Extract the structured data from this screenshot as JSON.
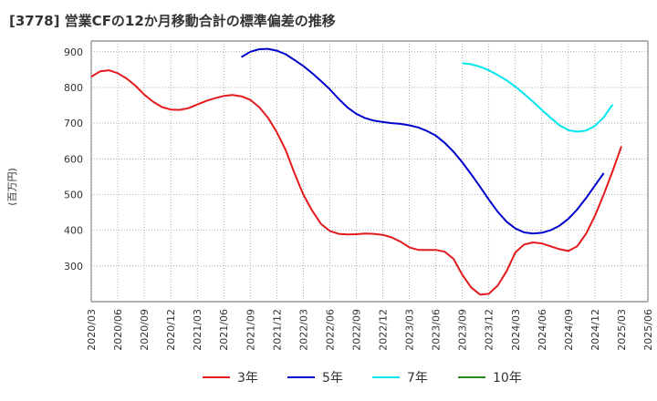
{
  "chart_data": {
    "type": "line",
    "title": "[3778]  営業CFの12か月移動合計の標準偏差の推移",
    "ylabel": "(百万円)",
    "xlabel": "",
    "ylim": [
      200,
      930
    ],
    "yticks": [
      300,
      400,
      500,
      600,
      700,
      800,
      900
    ],
    "xlim": [
      "2020-03",
      "2025-06"
    ],
    "xticks": [
      "2020/03",
      "2020/06",
      "2020/09",
      "2020/12",
      "2021/03",
      "2021/06",
      "2021/09",
      "2021/12",
      "2022/03",
      "2022/06",
      "2022/09",
      "2022/12",
      "2023/03",
      "2023/06",
      "2023/09",
      "2023/12",
      "2024/03",
      "2024/06",
      "2024/09",
      "2024/12",
      "2025/03",
      "2025/06"
    ],
    "grid": true,
    "legend_position": "bottom",
    "series": [
      {
        "name": "3年",
        "color": "#e41a1c",
        "points": [
          [
            "2020-03",
            830
          ],
          [
            "2020-04",
            845
          ],
          [
            "2020-05",
            848
          ],
          [
            "2020-06",
            840
          ],
          [
            "2020-07",
            825
          ],
          [
            "2020-08",
            805
          ],
          [
            "2020-09",
            780
          ],
          [
            "2020-10",
            760
          ],
          [
            "2020-11",
            745
          ],
          [
            "2020-12",
            738
          ],
          [
            "2021-01",
            737
          ],
          [
            "2021-02",
            742
          ],
          [
            "2021-03",
            752
          ],
          [
            "2021-04",
            762
          ],
          [
            "2021-05",
            770
          ],
          [
            "2021-06",
            776
          ],
          [
            "2021-07",
            779
          ],
          [
            "2021-08",
            775
          ],
          [
            "2021-09",
            765
          ],
          [
            "2021-10",
            745
          ],
          [
            "2021-11",
            715
          ],
          [
            "2021-12",
            675
          ],
          [
            "2022-01",
            625
          ],
          [
            "2022-02",
            560
          ],
          [
            "2022-03",
            500
          ],
          [
            "2022-04",
            455
          ],
          [
            "2022-05",
            418
          ],
          [
            "2022-06",
            398
          ],
          [
            "2022-07",
            390
          ],
          [
            "2022-08",
            388
          ],
          [
            "2022-09",
            389
          ],
          [
            "2022-10",
            391
          ],
          [
            "2022-11",
            390
          ],
          [
            "2022-12",
            387
          ],
          [
            "2023-01",
            380
          ],
          [
            "2023-02",
            368
          ],
          [
            "2023-03",
            352
          ],
          [
            "2023-04",
            345
          ],
          [
            "2023-05",
            345
          ],
          [
            "2023-06",
            345
          ],
          [
            "2023-07",
            340
          ],
          [
            "2023-08",
            320
          ],
          [
            "2023-09",
            275
          ],
          [
            "2023-10",
            240
          ],
          [
            "2023-11",
            220
          ],
          [
            "2023-12",
            222
          ],
          [
            "2024-01",
            245
          ],
          [
            "2024-02",
            285
          ],
          [
            "2024-03",
            338
          ],
          [
            "2024-04",
            360
          ],
          [
            "2024-05",
            366
          ],
          [
            "2024-06",
            363
          ],
          [
            "2024-07",
            355
          ],
          [
            "2024-08",
            347
          ],
          [
            "2024-09",
            342
          ],
          [
            "2024-10",
            355
          ],
          [
            "2024-11",
            390
          ],
          [
            "2024-12",
            440
          ],
          [
            "2025-01",
            500
          ],
          [
            "2025-02",
            565
          ],
          [
            "2025-03",
            635
          ]
        ]
      },
      {
        "name": "5年",
        "color": "#0000cc",
        "points": [
          [
            "2021-08",
            885
          ],
          [
            "2021-09",
            900
          ],
          [
            "2021-10",
            907
          ],
          [
            "2021-11",
            908
          ],
          [
            "2021-12",
            903
          ],
          [
            "2022-01",
            893
          ],
          [
            "2022-02",
            877
          ],
          [
            "2022-03",
            860
          ],
          [
            "2022-04",
            840
          ],
          [
            "2022-05",
            818
          ],
          [
            "2022-06",
            795
          ],
          [
            "2022-07",
            768
          ],
          [
            "2022-08",
            744
          ],
          [
            "2022-09",
            726
          ],
          [
            "2022-10",
            714
          ],
          [
            "2022-11",
            707
          ],
          [
            "2022-12",
            703
          ],
          [
            "2023-01",
            700
          ],
          [
            "2023-02",
            698
          ],
          [
            "2023-03",
            694
          ],
          [
            "2023-04",
            688
          ],
          [
            "2023-05",
            678
          ],
          [
            "2023-06",
            665
          ],
          [
            "2023-07",
            645
          ],
          [
            "2023-08",
            620
          ],
          [
            "2023-09",
            590
          ],
          [
            "2023-10",
            557
          ],
          [
            "2023-11",
            522
          ],
          [
            "2023-12",
            486
          ],
          [
            "2024-01",
            452
          ],
          [
            "2024-02",
            424
          ],
          [
            "2024-03",
            405
          ],
          [
            "2024-04",
            394
          ],
          [
            "2024-05",
            391
          ],
          [
            "2024-06",
            393
          ],
          [
            "2024-07",
            400
          ],
          [
            "2024-08",
            413
          ],
          [
            "2024-09",
            432
          ],
          [
            "2024-10",
            458
          ],
          [
            "2024-11",
            490
          ],
          [
            "2024-12",
            525
          ],
          [
            "2025-01",
            560
          ]
        ]
      },
      {
        "name": "7年",
        "color": "#00e5ee",
        "points": [
          [
            "2023-09",
            868
          ],
          [
            "2023-10",
            865
          ],
          [
            "2023-11",
            858
          ],
          [
            "2023-12",
            848
          ],
          [
            "2024-01",
            835
          ],
          [
            "2024-02",
            820
          ],
          [
            "2024-03",
            802
          ],
          [
            "2024-04",
            782
          ],
          [
            "2024-05",
            760
          ],
          [
            "2024-06",
            737
          ],
          [
            "2024-07",
            715
          ],
          [
            "2024-08",
            694
          ],
          [
            "2024-09",
            680
          ],
          [
            "2024-10",
            676
          ],
          [
            "2024-11",
            679
          ],
          [
            "2024-12",
            692
          ],
          [
            "2025-01",
            716
          ],
          [
            "2025-02",
            752
          ]
        ]
      },
      {
        "name": "10年",
        "color": "#228b22",
        "points": []
      }
    ]
  }
}
